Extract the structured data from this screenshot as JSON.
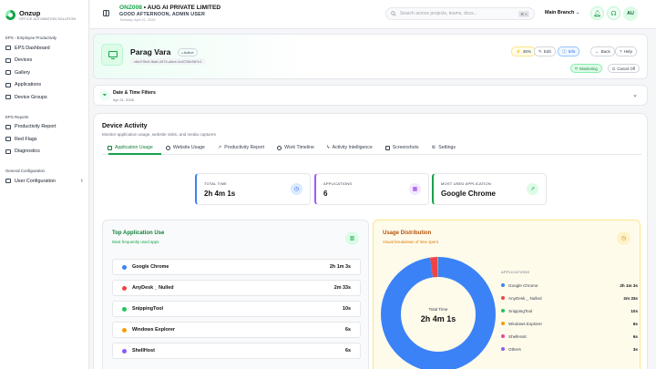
{
  "brand": {
    "name": "Onzup",
    "tagline": "OFFICE AUTOMATION SOLUTION"
  },
  "sidebar": {
    "sections": [
      {
        "title": "EPS - Employee Productivity",
        "items": [
          {
            "label": "EPS Dashboard",
            "icon": "dashboard-icon"
          },
          {
            "label": "Devices",
            "icon": "monitor-icon"
          },
          {
            "label": "Gallery",
            "icon": "image-icon"
          },
          {
            "label": "Applications",
            "icon": "apps-icon"
          },
          {
            "label": "Device Groups",
            "icon": "group-icon"
          }
        ]
      },
      {
        "title": "EPS Reports",
        "items": [
          {
            "label": "Productivity Report",
            "icon": "report-icon"
          },
          {
            "label": "Red Flags",
            "icon": "flag-icon"
          },
          {
            "label": "Diagnostics",
            "icon": "pulse-icon"
          }
        ]
      },
      {
        "title": "General Configuration",
        "items": [
          {
            "label": "User Configuration",
            "icon": "user-icon"
          }
        ]
      }
    ]
  },
  "topbar": {
    "code": "ONZ008",
    "company": "AUG AI PRIVATE LIMITED",
    "greeting": "GOOD AFTERNOON, ADMIN USER",
    "date": "Tuesday, April 21, 2026",
    "search_placeholder": "Search across projects, teams, docs...",
    "search_kbd": "⌘ K",
    "branch": "Main Branch",
    "avatar": "AU"
  },
  "device": {
    "name": "Parag Vara",
    "status": "Active",
    "uuid": "c6ef79fc5-f6a8-4576-a8ee-6c8726b987e1",
    "battery": "48%",
    "actions": [
      "Edit",
      "Info",
      "Back",
      "Help"
    ],
    "monitoring": "Monitoring",
    "cancel": "Cancel Off"
  },
  "filters": {
    "title": "Date & Time Filters",
    "date": "Apr 21, 2026"
  },
  "activity": {
    "title": "Device Activity",
    "subtitle": "Monitor application usage, website visits, and media captures",
    "tabs": [
      "Application Usage",
      "Website Usage",
      "Productivity Report",
      "Work Timeline",
      "Activity Intelligence",
      "Screenshots",
      "Settings"
    ],
    "active_tab": 0
  },
  "stats": [
    {
      "label": "TOTAL TIME",
      "value": "2h 4m 1s",
      "color": "#3b82f6"
    },
    {
      "label": "APPLICATIONS",
      "value": "6",
      "color": "#a855f7"
    },
    {
      "label": "MOST USED APPLICATION",
      "value": "Google Chrome",
      "color": "#16a34a"
    }
  ],
  "top_apps": {
    "title": "Top Application Use",
    "subtitle": "Most frequently used apps",
    "items": [
      {
        "name": "Google Chrome",
        "time": "2h 1m 3s",
        "color": "#3b82f6"
      },
      {
        "name": "AnyDesk _ Nulled",
        "time": "2m 33s",
        "color": "#ef4444"
      },
      {
        "name": "SnippingTool",
        "time": "10s",
        "color": "#22c55e"
      },
      {
        "name": "Windows Explorer",
        "time": "6s",
        "color": "#f59e0b"
      },
      {
        "name": "ShellHost",
        "time": "6s",
        "color": "#8b5cf6"
      }
    ]
  },
  "distribution": {
    "title": "Usage Distribution",
    "subtitle": "Visual breakdown of time spent",
    "center_label": "Total Time",
    "center_value": "2h 4m 1s",
    "legend_title": "APPLICATIONS",
    "items": [
      {
        "name": "Google Chrome",
        "time": "2h 1m 3s",
        "seconds": 7263,
        "color": "#3b82f6"
      },
      {
        "name": "AnyDesk _ Nulled",
        "time": "2m 33s",
        "seconds": 153,
        "color": "#ef4444"
      },
      {
        "name": "SnippingTool",
        "time": "10s",
        "seconds": 10,
        "color": "#22c55e"
      },
      {
        "name": "Windows Explorer",
        "time": "6s",
        "seconds": 6,
        "color": "#f59e0b"
      },
      {
        "name": "ShellHost",
        "time": "6s",
        "seconds": 6,
        "color": "#ec4899"
      },
      {
        "name": "Others",
        "time": "3s",
        "seconds": 3,
        "color": "#8b5cf6"
      }
    ]
  }
}
